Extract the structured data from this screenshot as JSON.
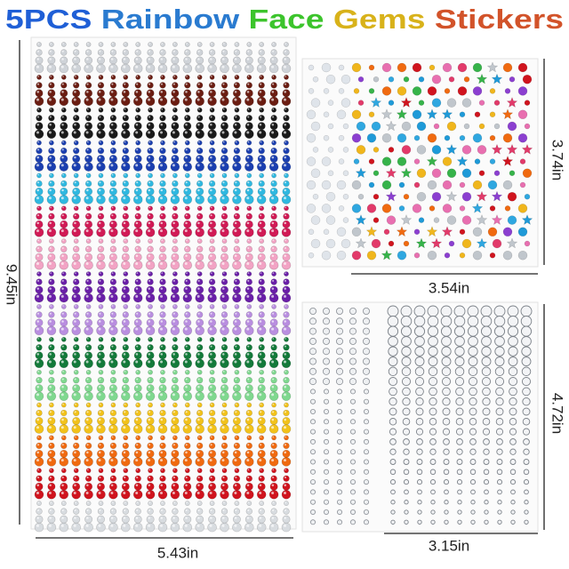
{
  "title": {
    "words": [
      {
        "text": "5PCS",
        "color": "#1f5fd6"
      },
      {
        "text": "Rainbow",
        "color": "#2a7bd0"
      },
      {
        "text": "Face",
        "color": "#3cc42c"
      },
      {
        "text": "Gems",
        "color": "#d8b21a"
      },
      {
        "text": "Stickers",
        "color": "#d2532a"
      }
    ]
  },
  "dimensions": {
    "large_sheet_height": "9.45in",
    "large_sheet_width": "5.43in",
    "shapes_sheet_height": "3.74in",
    "shapes_sheet_width": "3.54in",
    "clear_sheet_height": "4.72in",
    "clear_sheet_width": "3.15in"
  }
}
